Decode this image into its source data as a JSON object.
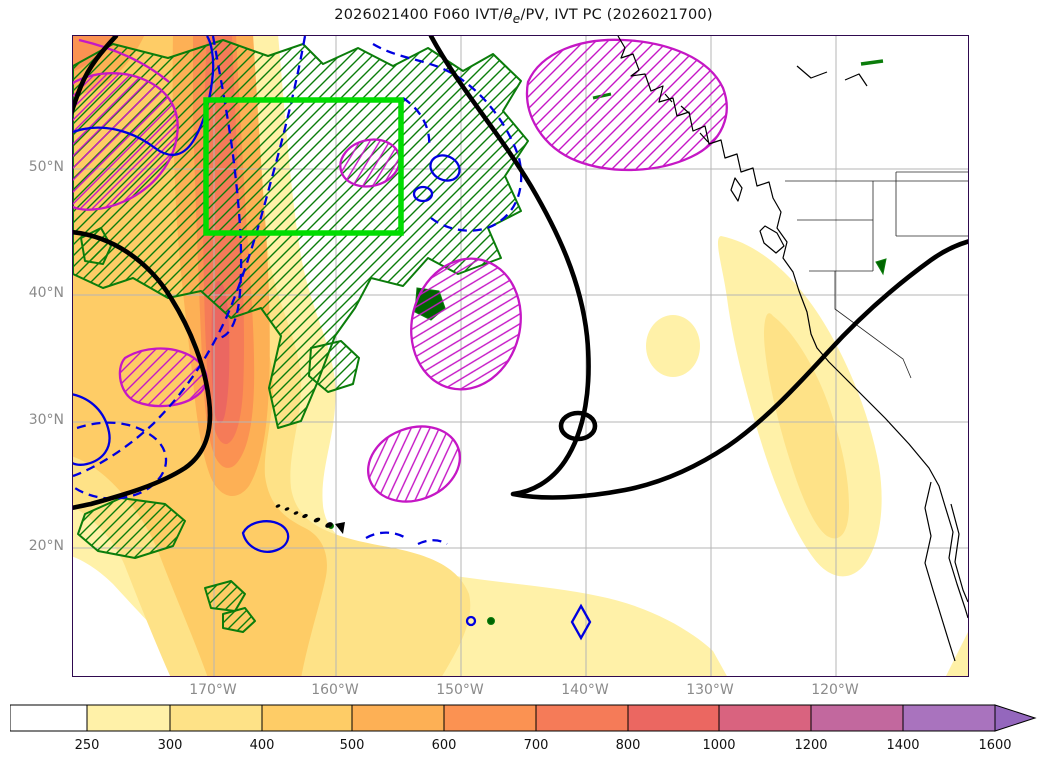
{
  "title": {
    "prefix": "2026021400 F060 IVT/",
    "theta": "θ",
    "theta_sub": "e",
    "suffix": "/PV, IVT PC (2026021700)"
  },
  "axes": {
    "lat_ticks": [
      "50°N",
      "40°N",
      "30°N",
      "20°N"
    ],
    "lon_ticks": [
      "170°W",
      "160°W",
      "150°W",
      "140°W",
      "130°W",
      "120°W"
    ]
  },
  "colorbar": {
    "tick_labels": [
      "250",
      "300",
      "400",
      "500",
      "600",
      "700",
      "800",
      "1000",
      "1200",
      "1400",
      "1600"
    ],
    "segment_colors": [
      "#ffffff",
      "#fff1a8",
      "#fee287",
      "#fecc66",
      "#fdb055",
      "#fb9252",
      "#f57b58",
      "#eb6761",
      "#d9637f",
      "#c2689e",
      "#a973be"
    ],
    "arrow_color": "#9467bd"
  },
  "colors": {
    "contour-black": "#000000",
    "contour-blue": "#0000e0",
    "contour-green": "#0b7d0b",
    "green-solid": "#006400",
    "contour-magenta": "#c517c5",
    "box-green": "#00dd00",
    "grid": "#b5b5b5",
    "tick-label": "#8b8b8b",
    "frame": "#2f0a4f"
  },
  "chart_data": {
    "type": "heatmap",
    "variant": "filled_contour_map",
    "title": "2026021400 F060 IVT/θe/PV, IVT PC (2026021700)",
    "region": "North Pacific and western North America (map with coastlines, US state borders, Hawaii)",
    "x_axis": {
      "label": "longitude",
      "ticks": [
        "170°W",
        "160°W",
        "150°W",
        "140°W",
        "130°W",
        "120°W"
      ]
    },
    "y_axis": {
      "label": "latitude",
      "ticks": [
        "50°N",
        "40°N",
        "30°N",
        "20°N"
      ]
    },
    "fill_field": "IVT magnitude (filled contours, colorbar with extend arrow)",
    "fill_levels": [
      250,
      300,
      400,
      500,
      600,
      700,
      800,
      1000,
      1200,
      1400,
      1600
    ],
    "fill_colors": [
      "#ffffff",
      "#fff1a8",
      "#fee287",
      "#fecc66",
      "#fdb055",
      "#fb9252",
      "#f57b58",
      "#eb6761",
      "#d9637f",
      "#c2689e",
      "#a973be"
    ],
    "overlays": [
      {
        "name": "thick-black-contours",
        "description": "Thick black lines: one in far NW corner, one arcing along the west/left side near 175°W 30-45°N, one large curve from ~147°W at top sweeping south to ~25°N near 150°W then northeast across the California coast, plus a small closed loop near 145°W 30°N"
      },
      {
        "name": "blue-contours",
        "description": "Blue solid and dashed contours concentrated west of 160°W between 15°N and 58°N; small closed blue cells near Hawaii and near 137°W 17°N"
      },
      {
        "name": "green-hatched-regions",
        "description": "Dark green outlined regions with / hatching: large irregular area 180°-148°W, 38°-58°N extending down the IVT plume; smaller patches near 175°W 22°N and south of Hawaii"
      },
      {
        "name": "magenta-hatched-regions",
        "description": "Magenta outlined / hatched regions: far NW corner, large oval 157°-140°W 50°-58°N, small oval inside the green box near 162°W 50°N, oval near 152°W 35°-42°N, oval near 158°W 24°-28°N, small cell near 176°W 33°N"
      },
      {
        "name": "lime-target-box",
        "description": "Bright lime-green rectangle (IVT PC target region) approx 176°W-155°W, 45°N-55°N"
      }
    ],
    "features": [
      {
        "name": "primary IVT plume",
        "location": "quasi-meridional band near 168°W from ~57°N to ~27°N",
        "peak_level": "800-1000"
      },
      {
        "name": "secondary IVT area",
        "location": "along California/Baja coast near 128°W-118°W, 22°N-42°N",
        "peak_level": "300-500"
      },
      {
        "name": "broad low-IVT band",
        "location": "southern part of domain south of 25°N west of ~145°W",
        "peak_level": "250-400"
      },
      {
        "name": "isolated IVT patch",
        "location": "~141°W, 36°N",
        "peak_level": "250-300"
      }
    ],
    "legend_position": "horizontal colorbar at bottom",
    "grid": true
  }
}
